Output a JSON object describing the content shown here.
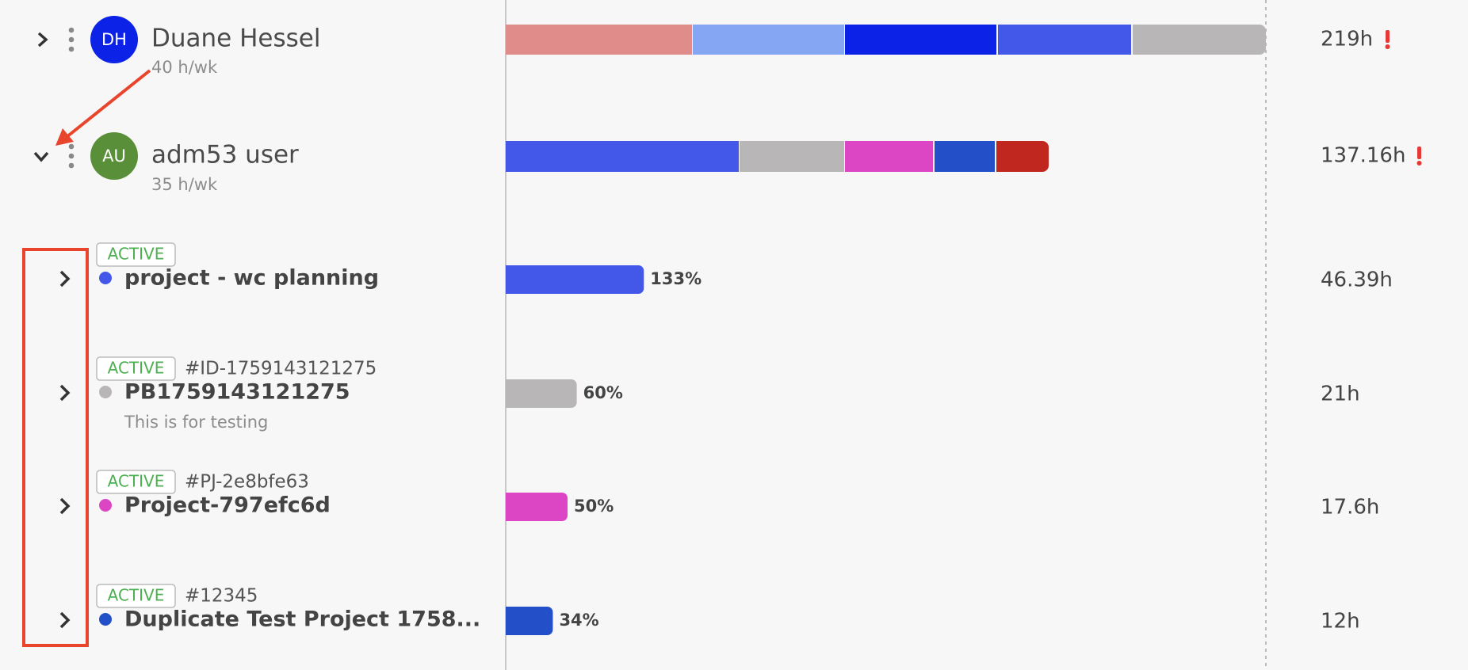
{
  "users": [
    {
      "initials": "DH",
      "name": "Duane Hessel",
      "capacity": "40 h/wk",
      "total": "219h"
    },
    {
      "initials": "AU",
      "name": "adm53 user",
      "capacity": "35 h/wk",
      "total": "137.16h"
    }
  ],
  "projects": [
    {
      "status": "ACTIVE",
      "name": "project - wc planning",
      "color": "#4358e8",
      "utilization": {
        "value": 133,
        "label": "133%"
      },
      "hours": "46.39h"
    },
    {
      "status": "ACTIVE",
      "id": "#ID-1759143121275",
      "name": "PB1759143121275",
      "description": "This is for testing",
      "color": "#b8b6b6",
      "utilization": {
        "value": 60,
        "label": "60%"
      },
      "hours": "21h"
    },
    {
      "status": "ACTIVE",
      "id": "#PJ-2e8bfe63",
      "name": "Project-797efc6d",
      "color": "#dc46c4",
      "utilization": {
        "value": 50,
        "label": "50%"
      },
      "hours": "17.6h"
    },
    {
      "status": "ACTIVE",
      "id": "#12345",
      "name": "Duplicate Test Project 1758...",
      "color": "#2350c8",
      "utilization": {
        "value": 34,
        "label": "34%"
      },
      "hours": "12h"
    }
  ]
}
